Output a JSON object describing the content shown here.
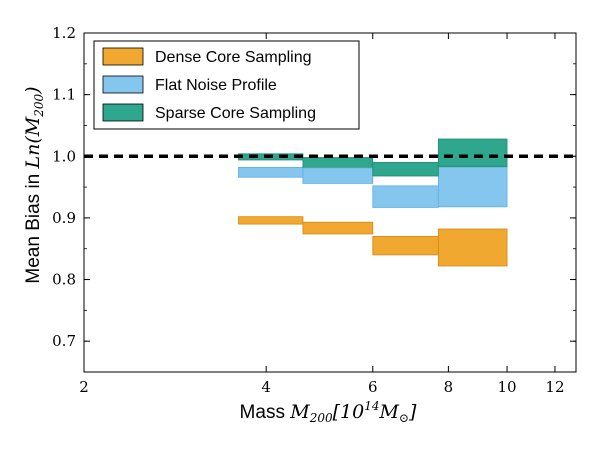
{
  "chart_data": {
    "type": "area",
    "title": "",
    "xlabel": {
      "prefix": "Mass ",
      "math": "M",
      "sub": "200",
      "rest": "[10",
      "sup": "14",
      "end": "M",
      "end_sub": "⊙",
      "close": "]"
    },
    "ylabel": {
      "prefix": "Mean Bias in ",
      "math": "Ln",
      "open": "(",
      "m": "M",
      "sub": "200",
      "close": ")"
    },
    "xlim": [
      2,
      13
    ],
    "ylim": [
      0.65,
      1.2
    ],
    "xticks": [
      2,
      4,
      6,
      8,
      10,
      12
    ],
    "xtick_labels": [
      "2",
      "4",
      "6",
      "8",
      "10",
      "12"
    ],
    "yticks": [
      0.7,
      0.8,
      0.9,
      1.0,
      1.1,
      1.2
    ],
    "ytick_labels": [
      "0.7",
      "0.8",
      "0.9",
      "1.0",
      "1.1",
      "1.2"
    ],
    "reference_line": {
      "y": 1.0,
      "style": "dashed",
      "color": "#000000"
    },
    "legend_position": "top-left",
    "series": [
      {
        "name": "Dense Core Sampling",
        "color": "#F0A830",
        "edge": "#D08A10",
        "bins": [
          {
            "x0": 3.6,
            "x1": 4.6,
            "low": 0.89,
            "high": 0.902
          },
          {
            "x0": 4.6,
            "x1": 6.0,
            "low": 0.874,
            "high": 0.893
          },
          {
            "x0": 6.0,
            "x1": 7.7,
            "low": 0.84,
            "high": 0.87
          },
          {
            "x0": 7.7,
            "x1": 10.0,
            "low": 0.822,
            "high": 0.882
          }
        ]
      },
      {
        "name": "Flat Noise Profile",
        "color": "#85C6EE",
        "edge": "#5AAEE0",
        "bins": [
          {
            "x0": 3.6,
            "x1": 4.6,
            "low": 0.966,
            "high": 0.982
          },
          {
            "x0": 4.6,
            "x1": 6.0,
            "low": 0.956,
            "high": 0.98
          },
          {
            "x0": 6.0,
            "x1": 7.7,
            "low": 0.917,
            "high": 0.952
          },
          {
            "x0": 7.7,
            "x1": 10.0,
            "low": 0.918,
            "high": 0.985
          }
        ]
      },
      {
        "name": "Sparse Core Sampling",
        "color": "#2FA68E",
        "edge": "#1E8A74",
        "bins": [
          {
            "x0": 3.6,
            "x1": 4.6,
            "low": 0.994,
            "high": 1.004
          },
          {
            "x0": 4.6,
            "x1": 6.0,
            "low": 0.982,
            "high": 0.998
          },
          {
            "x0": 6.0,
            "x1": 7.7,
            "low": 0.968,
            "high": 0.99
          },
          {
            "x0": 7.7,
            "x1": 10.0,
            "low": 0.983,
            "high": 1.028
          }
        ]
      }
    ]
  }
}
